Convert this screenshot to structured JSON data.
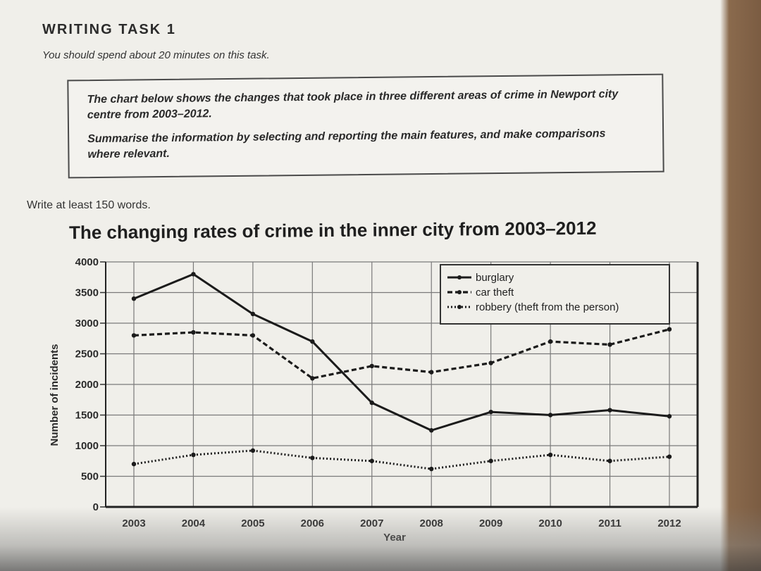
{
  "header": {
    "title": "WRITING TASK 1",
    "instruction": "You should spend about 20 minutes on this task."
  },
  "prompt": {
    "line1": "The chart below shows the changes that took place in three different areas of crime in Newport city centre from 2003–2012.",
    "line2": "Summarise the information by selecting and reporting the main features, and make comparisons where relevant."
  },
  "word_count": "Write at least 150 words.",
  "chart_data": {
    "type": "line",
    "title": "The changing rates of crime in the inner city from 2003–2012",
    "xlabel": "Year",
    "ylabel": "Number of incidents",
    "x": [
      "2003",
      "2004",
      "2005",
      "2006",
      "2007",
      "2008",
      "2009",
      "2010",
      "2011",
      "2012"
    ],
    "ylim": [
      0,
      4000
    ],
    "yticks": [
      "0",
      "500",
      "1000",
      "1500",
      "2000",
      "2500",
      "3000",
      "3500",
      "4000"
    ],
    "grid": true,
    "legend_position": "top-right",
    "series": [
      {
        "name": "burglary",
        "style": "solid",
        "values": [
          3400,
          3800,
          3150,
          2700,
          1700,
          1250,
          1550,
          1500,
          1580,
          1480
        ]
      },
      {
        "name": "car theft",
        "style": "dashed",
        "values": [
          2800,
          2850,
          2800,
          2100,
          2300,
          2200,
          2350,
          2700,
          2650,
          2900
        ]
      },
      {
        "name": "robbery (theft from the person)",
        "style": "dotted",
        "values": [
          700,
          850,
          920,
          800,
          750,
          620,
          750,
          850,
          750,
          820
        ]
      }
    ]
  }
}
